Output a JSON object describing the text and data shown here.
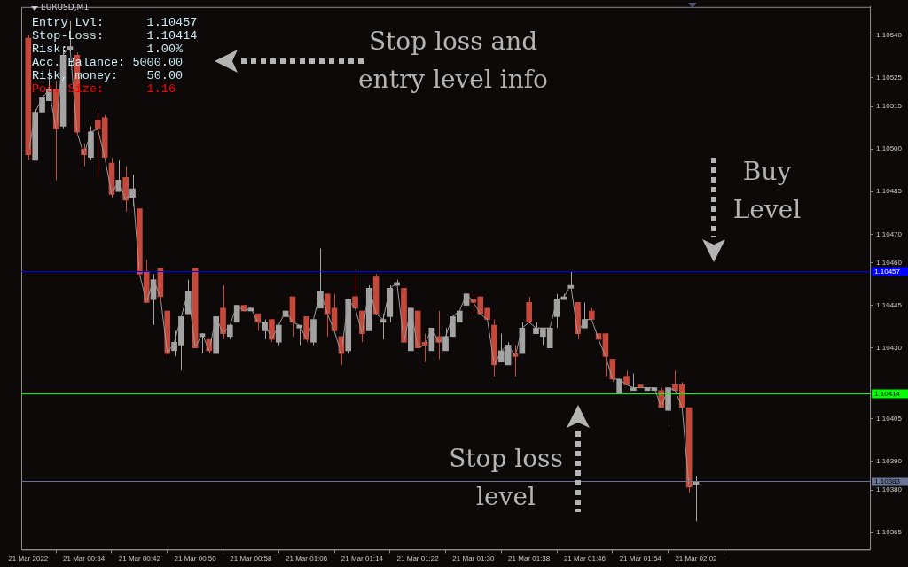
{
  "chart_data": {
    "type": "candlestick",
    "title": "EURUSD,M1",
    "x": [
      "2022-03-21T00:26",
      "2022-03-21T00:27",
      "2022-03-21T00:28",
      "2022-03-21T00:29",
      "2022-03-21T00:30",
      "2022-03-21T00:31",
      "2022-03-21T00:32",
      "2022-03-21T00:33",
      "2022-03-21T00:34",
      "2022-03-21T00:35",
      "2022-03-21T00:36",
      "2022-03-21T00:37",
      "2022-03-21T00:38",
      "2022-03-21T00:39",
      "2022-03-21T00:40",
      "2022-03-21T00:41",
      "2022-03-21T00:42",
      "2022-03-21T00:43",
      "2022-03-21T00:44",
      "2022-03-21T00:45",
      "2022-03-21T00:46",
      "2022-03-21T00:47",
      "2022-03-21T00:48",
      "2022-03-21T00:49",
      "2022-03-21T00:50",
      "2022-03-21T00:51",
      "2022-03-21T00:52",
      "2022-03-21T00:53",
      "2022-03-21T00:54",
      "2022-03-21T00:55",
      "2022-03-21T00:56",
      "2022-03-21T00:57",
      "2022-03-21T00:58",
      "2022-03-21T00:59",
      "2022-03-21T01:00",
      "2022-03-21T01:01",
      "2022-03-21T01:02",
      "2022-03-21T01:03",
      "2022-03-21T01:04",
      "2022-03-21T01:05",
      "2022-03-21T01:06",
      "2022-03-21T01:07",
      "2022-03-21T01:08",
      "2022-03-21T01:09",
      "2022-03-21T01:10",
      "2022-03-21T01:11",
      "2022-03-21T01:12",
      "2022-03-21T01:13",
      "2022-03-21T01:14",
      "2022-03-21T01:15",
      "2022-03-21T01:16",
      "2022-03-21T01:17",
      "2022-03-21T01:18",
      "2022-03-21T01:19",
      "2022-03-21T01:20",
      "2022-03-21T01:21",
      "2022-03-21T01:22",
      "2022-03-21T01:23",
      "2022-03-21T01:24",
      "2022-03-21T01:25",
      "2022-03-21T01:26",
      "2022-03-21T01:27",
      "2022-03-21T01:28",
      "2022-03-21T01:29",
      "2022-03-21T01:30",
      "2022-03-21T01:31",
      "2022-03-21T01:32",
      "2022-03-21T01:33",
      "2022-03-21T01:34",
      "2022-03-21T01:35",
      "2022-03-21T01:36",
      "2022-03-21T01:37",
      "2022-03-21T01:38",
      "2022-03-21T01:39",
      "2022-03-21T01:40",
      "2022-03-21T01:41",
      "2022-03-21T01:42",
      "2022-03-21T01:43",
      "2022-03-21T01:44",
      "2022-03-21T01:45",
      "2022-03-21T01:46",
      "2022-03-21T01:47",
      "2022-03-21T01:48",
      "2022-03-21T01:49",
      "2022-03-21T01:50",
      "2022-03-21T01:51",
      "2022-03-21T01:52",
      "2022-03-21T01:53",
      "2022-03-21T01:54",
      "2022-03-21T01:55",
      "2022-03-21T01:56",
      "2022-03-21T01:57",
      "2022-03-21T01:58",
      "2022-03-21T01:59",
      "2022-03-21T02:00",
      "2022-03-21T02:01",
      "2022-03-21T02:02"
    ],
    "ohlc": [
      [
        1.10539,
        1.1054,
        1.10496,
        1.10498
      ],
      [
        1.10496,
        1.10514,
        1.10496,
        1.10513
      ],
      [
        1.10513,
        1.1052,
        1.10513,
        1.10518
      ],
      [
        1.10517,
        1.10528,
        1.10517,
        1.10521
      ],
      [
        1.10521,
        1.10524,
        1.10489,
        1.10507
      ],
      [
        1.10508,
        1.10536,
        1.10507,
        1.10533
      ],
      [
        1.10535,
        1.10545,
        1.10534,
        1.10536
      ],
      [
        1.10533,
        1.10534,
        1.10505,
        1.10506
      ],
      [
        1.105,
        1.10502,
        1.10494,
        1.10498
      ],
      [
        1.10497,
        1.10508,
        1.10496,
        1.10506
      ],
      [
        1.1051,
        1.10513,
        1.1049,
        1.10507
      ],
      [
        1.10511,
        1.10512,
        1.10496,
        1.10497
      ],
      [
        1.10495,
        1.10497,
        1.10483,
        1.10484
      ],
      [
        1.10485,
        1.10496,
        1.10485,
        1.10489
      ],
      [
        1.1049,
        1.10494,
        1.10478,
        1.10482
      ],
      [
        1.10483,
        1.10491,
        1.1048,
        1.10486
      ],
      [
        1.10479,
        1.10479,
        1.10455,
        1.10456
      ],
      [
        1.10457,
        1.10461,
        1.10446,
        1.10446
      ],
      [
        1.10447,
        1.10456,
        1.10438,
        1.10454
      ],
      [
        1.10458,
        1.10458,
        1.10446,
        1.10448
      ],
      [
        1.10443,
        1.10443,
        1.10427,
        1.10428
      ],
      [
        1.10429,
        1.10436,
        1.10427,
        1.10432
      ],
      [
        1.10431,
        1.10441,
        1.10422,
        1.10441
      ],
      [
        1.10442,
        1.10454,
        1.10442,
        1.1045
      ],
      [
        1.10458,
        1.10458,
        1.1043,
        1.1043
      ],
      [
        1.10434,
        1.10435,
        1.10428,
        1.10435
      ],
      [
        1.10433,
        1.10433,
        1.10428,
        1.10429
      ],
      [
        1.10428,
        1.10441,
        1.10428,
        1.10441
      ],
      [
        1.10444,
        1.10452,
        1.10433,
        1.10435
      ],
      [
        1.10434,
        1.10438,
        1.10433,
        1.10438
      ],
      [
        1.10439,
        1.10445,
        1.10439,
        1.10445
      ],
      [
        1.10445,
        1.10445,
        1.10443,
        1.10443
      ],
      [
        1.10443,
        1.10444,
        1.10443,
        1.10444
      ],
      [
        1.10442,
        1.10442,
        1.10436,
        1.10439
      ],
      [
        1.10436,
        1.1044,
        1.10433,
        1.10439
      ],
      [
        1.1044,
        1.1044,
        1.10432,
        1.10433
      ],
      [
        1.10432,
        1.10438,
        1.10431,
        1.10438
      ],
      [
        1.10441,
        1.10443,
        1.10441,
        1.10443
      ],
      [
        1.10448,
        1.10448,
        1.10434,
        1.10439
      ],
      [
        1.10437,
        1.10438,
        1.10431,
        1.10438
      ],
      [
        1.10441,
        1.10441,
        1.10432,
        1.10433
      ],
      [
        1.10432,
        1.1044,
        1.10431,
        1.1044
      ],
      [
        1.10444,
        1.10465,
        1.10444,
        1.1045
      ],
      [
        1.10449,
        1.10449,
        1.10434,
        1.10442
      ],
      [
        1.10444,
        1.10449,
        1.10436,
        1.10436
      ],
      [
        1.10434,
        1.10434,
        1.10424,
        1.10428
      ],
      [
        1.10429,
        1.10447,
        1.10428,
        1.10447
      ],
      [
        1.10448,
        1.10456,
        1.10444,
        1.10444
      ],
      [
        1.10443,
        1.10443,
        1.10432,
        1.10435
      ],
      [
        1.10436,
        1.10452,
        1.10436,
        1.10451
      ],
      [
        1.10455,
        1.10456,
        1.10442,
        1.10442
      ],
      [
        1.10439,
        1.10442,
        1.10433,
        1.1044
      ],
      [
        1.10441,
        1.10452,
        1.10439,
        1.10451
      ],
      [
        1.10452,
        1.10454,
        1.10452,
        1.10453
      ],
      [
        1.10451,
        1.10451,
        1.10432,
        1.10432
      ],
      [
        1.10429,
        1.10444,
        1.10429,
        1.10444
      ],
      [
        1.10443,
        1.10443,
        1.1043,
        1.1043
      ],
      [
        1.10432,
        1.10435,
        1.10425,
        1.10431
      ],
      [
        1.10429,
        1.10437,
        1.10429,
        1.10437
      ],
      [
        1.10434,
        1.10443,
        1.10426,
        1.10432
      ],
      [
        1.10429,
        1.10437,
        1.10429,
        1.10434
      ],
      [
        1.10434,
        1.10441,
        1.10434,
        1.10441
      ],
      [
        1.10439,
        1.10443,
        1.10439,
        1.10443
      ],
      [
        1.10445,
        1.10449,
        1.10445,
        1.10449
      ],
      [
        1.10447,
        1.10449,
        1.10442,
        1.10446
      ],
      [
        1.10448,
        1.10448,
        1.10442,
        1.10442
      ],
      [
        1.10444,
        1.10444,
        1.1044,
        1.1044
      ],
      [
        1.10438,
        1.1044,
        1.1042,
        1.10424
      ],
      [
        1.10425,
        1.10435,
        1.10425,
        1.10429
      ],
      [
        1.10424,
        1.10432,
        1.10424,
        1.10431
      ],
      [
        1.10428,
        1.10431,
        1.1042,
        1.10427
      ],
      [
        1.10428,
        1.10439,
        1.10428,
        1.10437
      ],
      [
        1.10446,
        1.10448,
        1.10439,
        1.10439
      ],
      [
        1.10435,
        1.10439,
        1.10435,
        1.10437
      ],
      [
        1.10434,
        1.10437,
        1.10431,
        1.10437
      ],
      [
        1.1043,
        1.10437,
        1.1043,
        1.10437
      ],
      [
        1.10441,
        1.10449,
        1.10437,
        1.10447
      ],
      [
        1.10447,
        1.10449,
        1.10447,
        1.10448
      ],
      [
        1.10451,
        1.10457,
        1.10451,
        1.10452
      ],
      [
        1.10446,
        1.10446,
        1.10433,
        1.10435
      ],
      [
        1.10437,
        1.10446,
        1.10437,
        1.1044
      ],
      [
        1.10443,
        1.10444,
        1.1044,
        1.1044
      ],
      [
        1.10435,
        1.10435,
        1.10433,
        1.10433
      ],
      [
        1.10435,
        1.10435,
        1.1042,
        1.10427
      ],
      [
        1.10426,
        1.10426,
        1.10418,
        1.10419
      ],
      [
        1.10414,
        1.10419,
        1.10414,
        1.10419
      ],
      [
        1.1042,
        1.10422,
        1.10417,
        1.10417
      ],
      [
        1.10415,
        1.10421,
        1.10415,
        1.10416
      ],
      [
        1.10417,
        1.10417,
        1.10416,
        1.10416
      ],
      [
        1.10415,
        1.10416,
        1.10415,
        1.10416
      ],
      [
        1.10415,
        1.10416,
        1.10415,
        1.10416
      ],
      [
        1.10415,
        1.10416,
        1.10409,
        1.10409
      ],
      [
        1.10408,
        1.10416,
        1.10401,
        1.10416
      ],
      [
        1.10417,
        1.10422,
        1.10415,
        1.10415
      ],
      [
        1.10417,
        1.10418,
        1.10409,
        1.10409
      ],
      [
        1.10409,
        1.10409,
        1.10379,
        1.10381
      ],
      [
        1.10382,
        1.10385,
        1.10369,
        1.10383
      ]
    ],
    "colors": [
      "#c5493b",
      "#a3a3a3",
      "#a3a3a3",
      "#a3a3a3",
      "#c5493b",
      "#a3a3a3",
      "#a3a3a3",
      "#c5493b",
      "#c5493b",
      "#a3a3a3",
      "#c5493b",
      "#c5493b",
      "#c5493b",
      "#a3a3a3",
      "#c5493b",
      "#a3a3a3",
      "#c5493b",
      "#c5493b",
      "#a3a3a3",
      "#c5493b",
      "#c5493b",
      "#a3a3a3",
      "#a3a3a3",
      "#a3a3a3",
      "#c5493b",
      "#a3a3a3",
      "#c5493b",
      "#a3a3a3",
      "#c5493b",
      "#a3a3a3",
      "#a3a3a3",
      "#c5493b",
      "#a3a3a3",
      "#c5493b",
      "#a3a3a3",
      "#c5493b",
      "#a3a3a3",
      "#a3a3a3",
      "#c5493b",
      "#a3a3a3",
      "#c5493b",
      "#a3a3a3",
      "#a3a3a3",
      "#c5493b",
      "#c5493b",
      "#c5493b",
      "#a3a3a3",
      "#c5493b",
      "#c5493b",
      "#a3a3a3",
      "#c5493b",
      "#a3a3a3",
      "#a3a3a3",
      "#a3a3a3",
      "#c5493b",
      "#a3a3a3",
      "#c5493b",
      "#c5493b",
      "#a3a3a3",
      "#c5493b",
      "#a3a3a3",
      "#a3a3a3",
      "#a3a3a3",
      "#a3a3a3",
      "#c5493b",
      "#c5493b",
      "#c5493b",
      "#c5493b",
      "#a3a3a3",
      "#a3a3a3",
      "#c5493b",
      "#a3a3a3",
      "#c5493b",
      "#a3a3a3",
      "#a3a3a3",
      "#a3a3a3",
      "#a3a3a3",
      "#a3a3a3",
      "#a3a3a3",
      "#c5493b",
      "#a3a3a3",
      "#c5493b",
      "#c5493b",
      "#c5493b",
      "#c5493b",
      "#a3a3a3",
      "#c5493b",
      "#a3a3a3",
      "#c5493b",
      "#a3a3a3",
      "#a3a3a3",
      "#c5493b",
      "#a3a3a3",
      "#c5493b",
      "#c5493b",
      "#c5493b",
      "#a3a3a3"
    ],
    "series": [
      {
        "type": "line",
        "color": "#9a9a9a",
        "values": [
          1.10498,
          1.10513,
          1.10518,
          1.10521,
          1.10507,
          1.10533,
          1.10536,
          1.10506,
          1.10498,
          1.10506,
          1.10507,
          1.10497,
          1.10484,
          1.10489,
          1.10482,
          1.10486,
          1.10456,
          1.10446,
          1.10454,
          1.10448,
          1.10428,
          1.10432,
          1.10441,
          1.1045,
          1.1043,
          1.10435,
          1.10429,
          1.10441,
          1.10435,
          1.10438,
          1.10445,
          1.10443,
          1.10444,
          1.10439,
          1.10439,
          1.10433,
          1.10438,
          1.10443,
          1.10439,
          1.10438,
          1.10433,
          1.1044,
          1.1045,
          1.10442,
          1.10436,
          1.10428,
          1.10447,
          1.10444,
          1.10435,
          1.10451,
          1.10442,
          1.1044,
          1.10451,
          1.10453,
          1.10432,
          1.10444,
          1.1043,
          1.10431,
          1.10437,
          1.10432,
          1.10434,
          1.10441,
          1.10443,
          1.10449,
          1.10446,
          1.10442,
          1.1044,
          1.10424,
          1.10429,
          1.10431,
          1.10427,
          1.10437,
          1.10439,
          1.10437,
          1.10437,
          1.10437,
          1.10447,
          1.10448,
          1.10452,
          1.10435,
          1.1044,
          1.1044,
          1.10433,
          1.10427,
          1.10419,
          1.10419,
          1.10417,
          1.10416,
          1.10416,
          1.10416,
          1.10416,
          1.10409,
          1.10416,
          1.10415,
          1.10409,
          1.10381,
          1.10383
        ]
      }
    ],
    "xlim": [
      "2022-03-21T00:25",
      "2022-03-21T02:27"
    ],
    "xticks": [
      {
        "value": "2022-03-21T00:26",
        "label": "21 Mar 2022"
      },
      {
        "value": "2022-03-21T00:34",
        "label": "21 Mar 00:34"
      },
      {
        "value": "2022-03-21T00:42",
        "label": "21 Mar 00:42"
      },
      {
        "value": "2022-03-21T00:50",
        "label": "21 Mar 00:50"
      },
      {
        "value": "2022-03-21T00:58",
        "label": "21 Mar 00:58"
      },
      {
        "value": "2022-03-21T01:06",
        "label": "21 Mar 01:06"
      },
      {
        "value": "2022-03-21T01:14",
        "label": "21 Mar 01:14"
      },
      {
        "value": "2022-03-21T01:22",
        "label": "21 Mar 01:22"
      },
      {
        "value": "2022-03-21T01:30",
        "label": "21 Mar 01:30"
      },
      {
        "value": "2022-03-21T01:38",
        "label": "21 Mar 01:38"
      },
      {
        "value": "2022-03-21T01:46",
        "label": "21 Mar 01:46"
      },
      {
        "value": "2022-03-21T01:54",
        "label": "21 Mar 01:54"
      },
      {
        "value": "2022-03-21T02:02",
        "label": "21 Mar 02:02"
      }
    ],
    "ylim": [
      1.10359,
      1.1055
    ],
    "yticks": [
      {
        "value": 1.1054,
        "label": "1.10540"
      },
      {
        "value": 1.10525,
        "label": "1.10525"
      },
      {
        "value": 1.10515,
        "label": "1.10515"
      },
      {
        "value": 1.105,
        "label": "1.10500"
      },
      {
        "value": 1.10485,
        "label": "1.10485"
      },
      {
        "value": 1.1047,
        "label": "1.10470"
      },
      {
        "value": 1.1046,
        "label": "1.10460"
      },
      {
        "value": 1.10445,
        "label": "1.10445"
      },
      {
        "value": 1.1043,
        "label": "1.10430"
      },
      {
        "value": 1.10405,
        "label": "1.10405"
      },
      {
        "value": 1.1039,
        "label": "1.10390"
      },
      {
        "value": 1.1038,
        "label": "1.10380"
      },
      {
        "value": 1.10365,
        "label": "1.10365"
      }
    ],
    "ref_lines": [
      {
        "axis": "y",
        "value": 1.10457,
        "label": "1.10457",
        "color": "#0000ff"
      },
      {
        "axis": "y",
        "value": 1.10414,
        "label": "1.10414",
        "color": "#00ff00"
      },
      {
        "axis": "y",
        "value": 1.10383,
        "label": "1.10383",
        "color": "#6b7594"
      }
    ],
    "annotations": [
      "Entry Lvl:      1.10457",
      "Stop-Loss:      1.10414",
      "Risk:           1.00%",
      "Acc. Balance: 5000.00",
      "Risk, money:    50.00",
      "Pos. Size:      1.16",
      "Stop loss and entry level info",
      "Buy Level",
      "Stop loss level"
    ],
    "grid": false,
    "legend": false
  }
}
